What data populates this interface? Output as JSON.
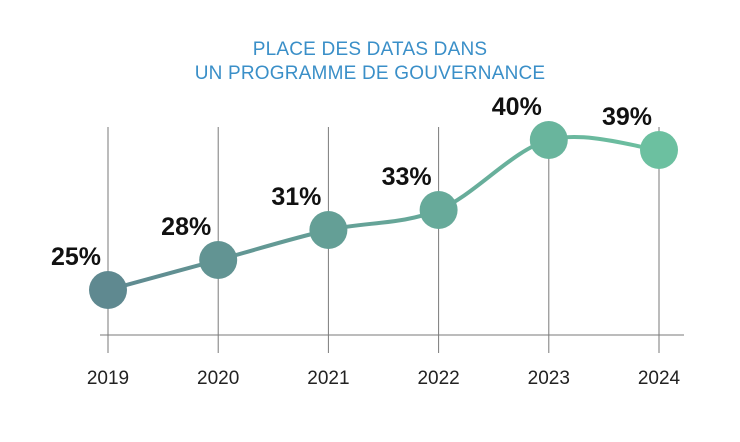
{
  "chart_data": {
    "type": "line",
    "title_line1": "PLACE DES DATAS DANS",
    "title_line2": "UN PROGRAMME DE GOUVERNANCE",
    "xlabel": "",
    "ylabel": "",
    "categories": [
      "2019",
      "2020",
      "2021",
      "2022",
      "2023",
      "2024"
    ],
    "values": [
      25,
      28,
      31,
      33,
      40,
      39
    ],
    "data_labels": [
      "25%",
      "28%",
      "31%",
      "33%",
      "40%",
      "39%"
    ],
    "ylim": [
      20,
      43
    ],
    "grid": "vertical",
    "colors": {
      "start": "#5f8990",
      "end": "#6cc0a0",
      "title": "#3a8fc8",
      "grid": "#7a7a7a"
    }
  }
}
